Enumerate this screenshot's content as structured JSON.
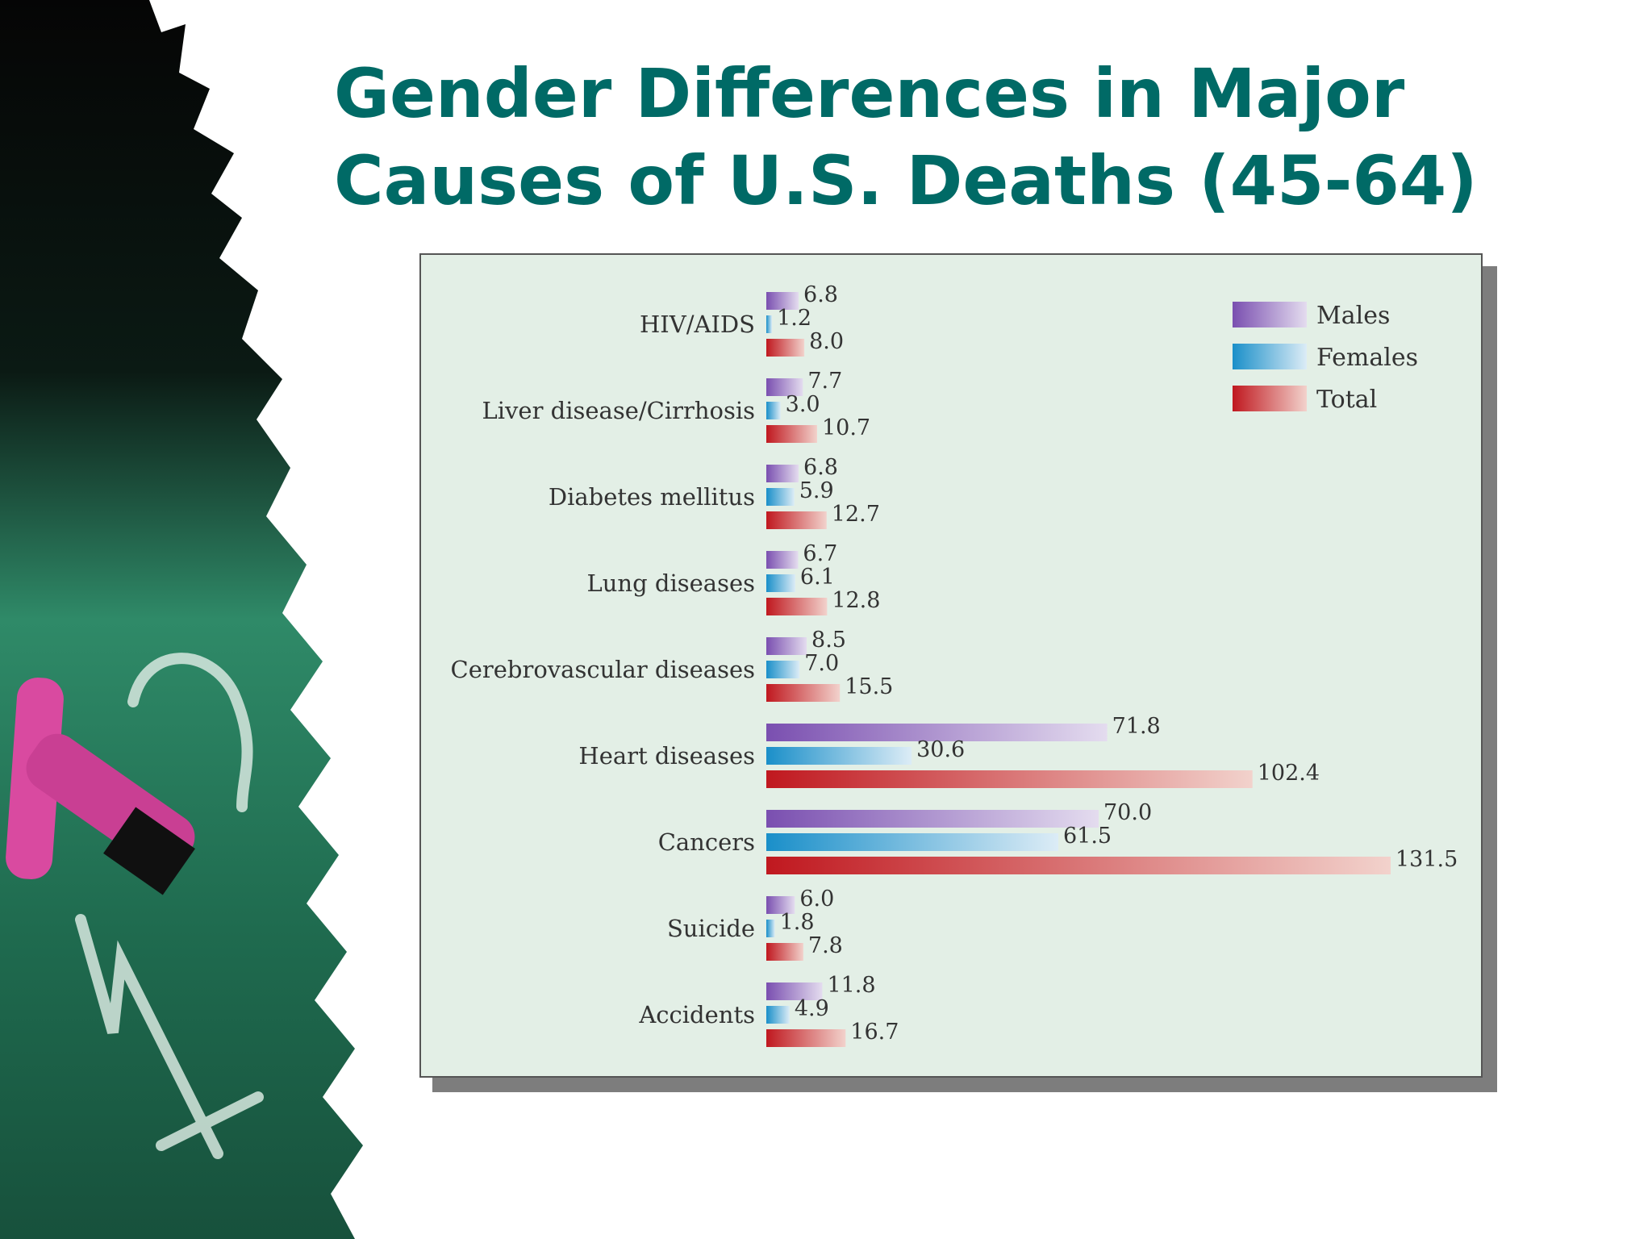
{
  "slide": {
    "title_line1": "Gender Differences in Major",
    "title_line2": "Causes of U.S. Deaths (45-64)"
  },
  "colors": {
    "title": "#006A66",
    "males": "#7a4fb0",
    "females": "#1a8fc9",
    "total": "#c0181f",
    "chart_background": "#e3efe6",
    "chalkboard": "#1d5a45"
  },
  "chart_data": {
    "type": "bar",
    "orientation": "horizontal",
    "title": "",
    "xlabel": "",
    "ylabel": "",
    "categories": [
      "HIV/AIDS",
      "Liver disease/Cirrhosis",
      "Diabetes mellitus",
      "Lung diseases",
      "Cerebrovascular diseases",
      "Heart diseases",
      "Cancers",
      "Suicide",
      "Accidents"
    ],
    "series": [
      {
        "name": "Males",
        "values": [
          6.8,
          7.7,
          6.8,
          6.7,
          8.5,
          71.8,
          70.0,
          6.0,
          11.8
        ],
        "labels": [
          "6.8",
          "7.7",
          "6.8",
          "6.7",
          "8.5",
          "71.8",
          "70.0",
          "6.0",
          "11.8"
        ]
      },
      {
        "name": "Females",
        "values": [
          1.2,
          3.0,
          5.9,
          6.1,
          7.0,
          30.6,
          61.5,
          1.8,
          4.9
        ],
        "labels": [
          "1.2",
          "3.0",
          "5.9",
          "6.1",
          "7.0",
          "30.6",
          "61.5",
          "1.8",
          "4.9"
        ]
      },
      {
        "name": "Total",
        "values": [
          8.0,
          10.7,
          12.7,
          12.8,
          15.5,
          102.4,
          131.5,
          7.8,
          16.7
        ],
        "labels": [
          "8.0",
          "10.7",
          "12.7",
          "12.8",
          "15.5",
          "102.4",
          "131.5",
          "7.8",
          "16.7"
        ]
      }
    ],
    "xlim": [
      0,
      131.5
    ],
    "grid": false,
    "legend_position": "top-right"
  }
}
